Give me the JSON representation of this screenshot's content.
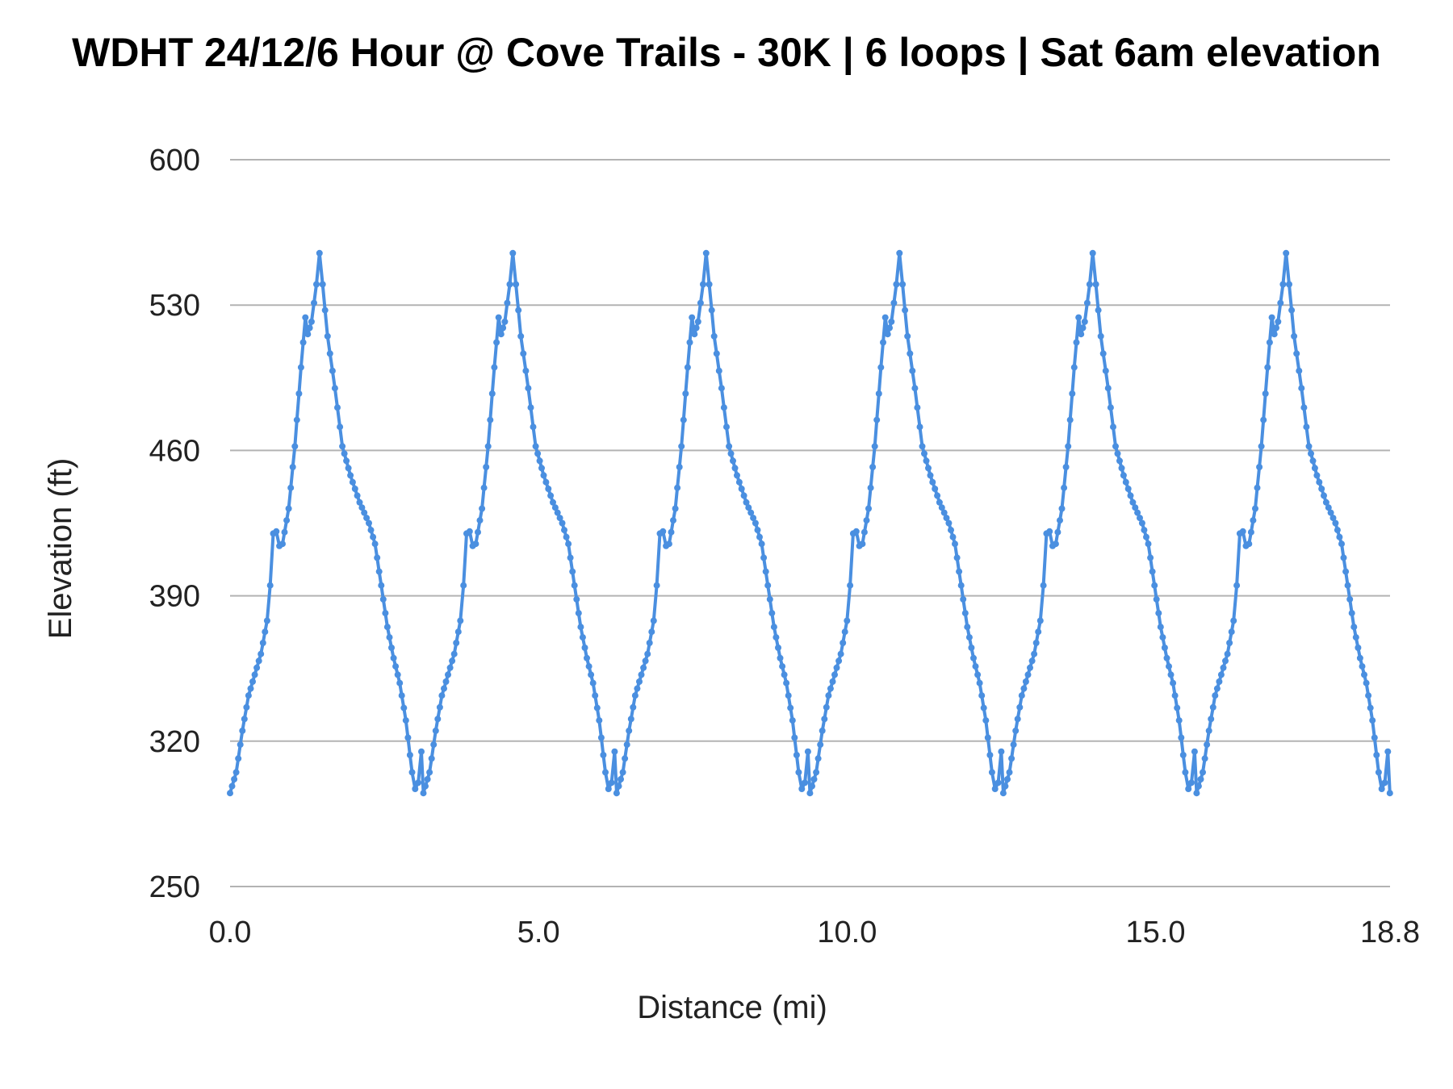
{
  "chart_data": {
    "type": "line",
    "title": "WDHT 24/12/6 Hour @ Cove Trails - 30K | 6 loops | Sat 6am elevation",
    "xlabel": "Distance (mi)",
    "ylabel": "Elevation (ft)",
    "xlim": [
      0,
      18.8
    ],
    "ylim": [
      250,
      600
    ],
    "x_ticks": [
      "0.0",
      "5.0",
      "10.0",
      "15.0",
      "18.8"
    ],
    "y_ticks": [
      "600",
      "530",
      "460",
      "390",
      "320",
      "250"
    ],
    "grid": true,
    "legend": "none",
    "loops": 6,
    "loop_length_mi": 3.133,
    "loop_profile": [
      {
        "x": 0.0,
        "y": 295
      },
      {
        "x": 0.1,
        "y": 305
      },
      {
        "x": 0.2,
        "y": 325
      },
      {
        "x": 0.3,
        "y": 342
      },
      {
        "x": 0.4,
        "y": 352
      },
      {
        "x": 0.5,
        "y": 362
      },
      {
        "x": 0.6,
        "y": 378
      },
      {
        "x": 0.65,
        "y": 395
      },
      {
        "x": 0.7,
        "y": 420
      },
      {
        "x": 0.75,
        "y": 421
      },
      {
        "x": 0.8,
        "y": 414
      },
      {
        "x": 0.85,
        "y": 415
      },
      {
        "x": 0.95,
        "y": 432
      },
      {
        "x": 1.05,
        "y": 462
      },
      {
        "x": 1.15,
        "y": 500
      },
      {
        "x": 1.22,
        "y": 524
      },
      {
        "x": 1.26,
        "y": 516
      },
      {
        "x": 1.32,
        "y": 522
      },
      {
        "x": 1.4,
        "y": 540
      },
      {
        "x": 1.45,
        "y": 555
      },
      {
        "x": 1.5,
        "y": 540
      },
      {
        "x": 1.58,
        "y": 515
      },
      {
        "x": 1.7,
        "y": 490
      },
      {
        "x": 1.82,
        "y": 462
      },
      {
        "x": 1.95,
        "y": 448
      },
      {
        "x": 2.1,
        "y": 435
      },
      {
        "x": 2.25,
        "y": 425
      },
      {
        "x": 2.35,
        "y": 415
      },
      {
        "x": 2.45,
        "y": 395
      },
      {
        "x": 2.55,
        "y": 375
      },
      {
        "x": 2.65,
        "y": 360
      },
      {
        "x": 2.75,
        "y": 348
      },
      {
        "x": 2.85,
        "y": 330
      },
      {
        "x": 2.95,
        "y": 305
      },
      {
        "x": 3.0,
        "y": 297
      },
      {
        "x": 3.05,
        "y": 300
      },
      {
        "x": 3.1,
        "y": 315
      },
      {
        "x": 3.133,
        "y": 295
      }
    ]
  }
}
